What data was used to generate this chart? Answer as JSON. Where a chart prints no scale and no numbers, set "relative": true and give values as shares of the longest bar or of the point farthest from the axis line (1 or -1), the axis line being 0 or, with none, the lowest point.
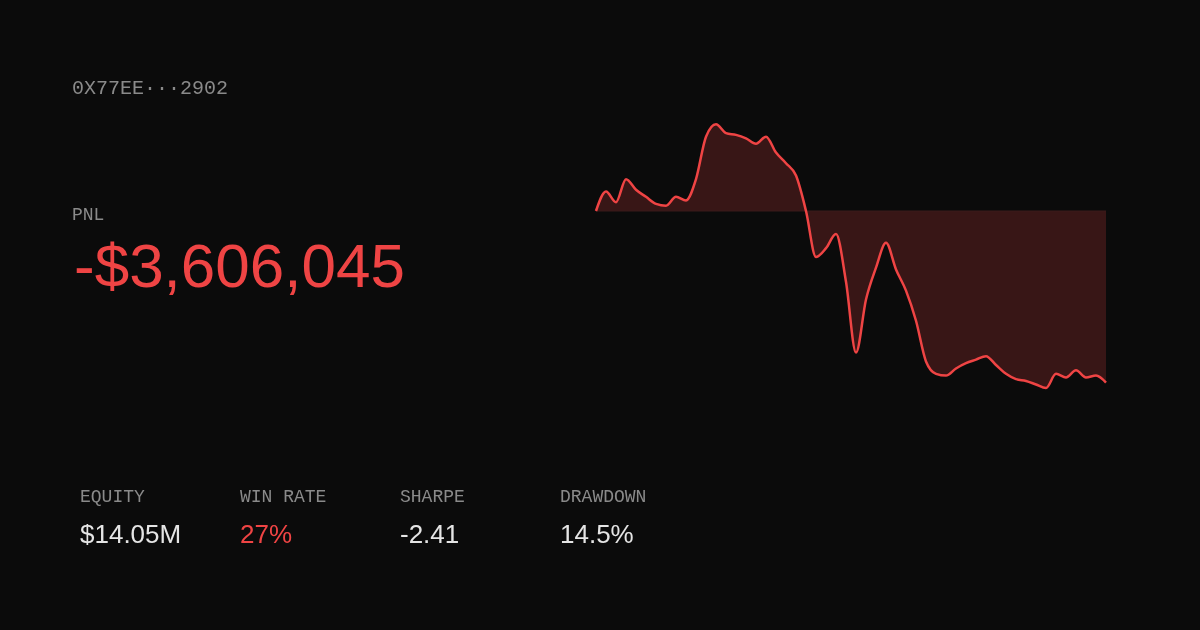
{
  "chart_data": {
    "type": "area",
    "relative": true,
    "categories": [
      null,
      null,
      null,
      null,
      null,
      null,
      null,
      null,
      null,
      null,
      null,
      null,
      null,
      null,
      null,
      null,
      null,
      null,
      null,
      null,
      null,
      null,
      null,
      null,
      null,
      null,
      null,
      null,
      null,
      null,
      null,
      null,
      null,
      null,
      null,
      null,
      null,
      null,
      null,
      null,
      null,
      null,
      null,
      null,
      null,
      null,
      null,
      null,
      null,
      null,
      null,
      null
    ],
    "series": [
      {
        "color": "#ef4444",
        "values": [
          0,
          0.11,
          0.05,
          0.18,
          0.12,
          0.08,
          0.04,
          0.03,
          0.08,
          0.06,
          0.18,
          0.42,
          0.49,
          0.44,
          0.43,
          0.41,
          0.38,
          0.42,
          0.33,
          0.27,
          0.2,
          0,
          -0.26,
          -0.21,
          -0.13,
          -0.4,
          -0.8,
          -0.5,
          -0.32,
          -0.18,
          -0.33,
          -0.45,
          -0.62,
          -0.85,
          -0.92,
          -0.93,
          -0.89,
          -0.86,
          -0.84,
          -0.82,
          -0.87,
          -0.92,
          -0.95,
          -0.96,
          -0.98,
          -1,
          -0.92,
          -0.94,
          -0.9,
          -0.94,
          -0.93,
          -0.97
        ]
      }
    ],
    "ref_lines": [
      {
        "axis": "y",
        "value": 0,
        "color": "#3b1a1a"
      }
    ],
    "annotations": [
      "0X77EE···2902",
      "PNL",
      "-$3,606,045",
      "EQUITY",
      "$14.05M",
      "WIN RATE",
      "27%",
      "SHARPE",
      "-2.41",
      "DRAWDOWN",
      "14.5%"
    ]
  }
}
